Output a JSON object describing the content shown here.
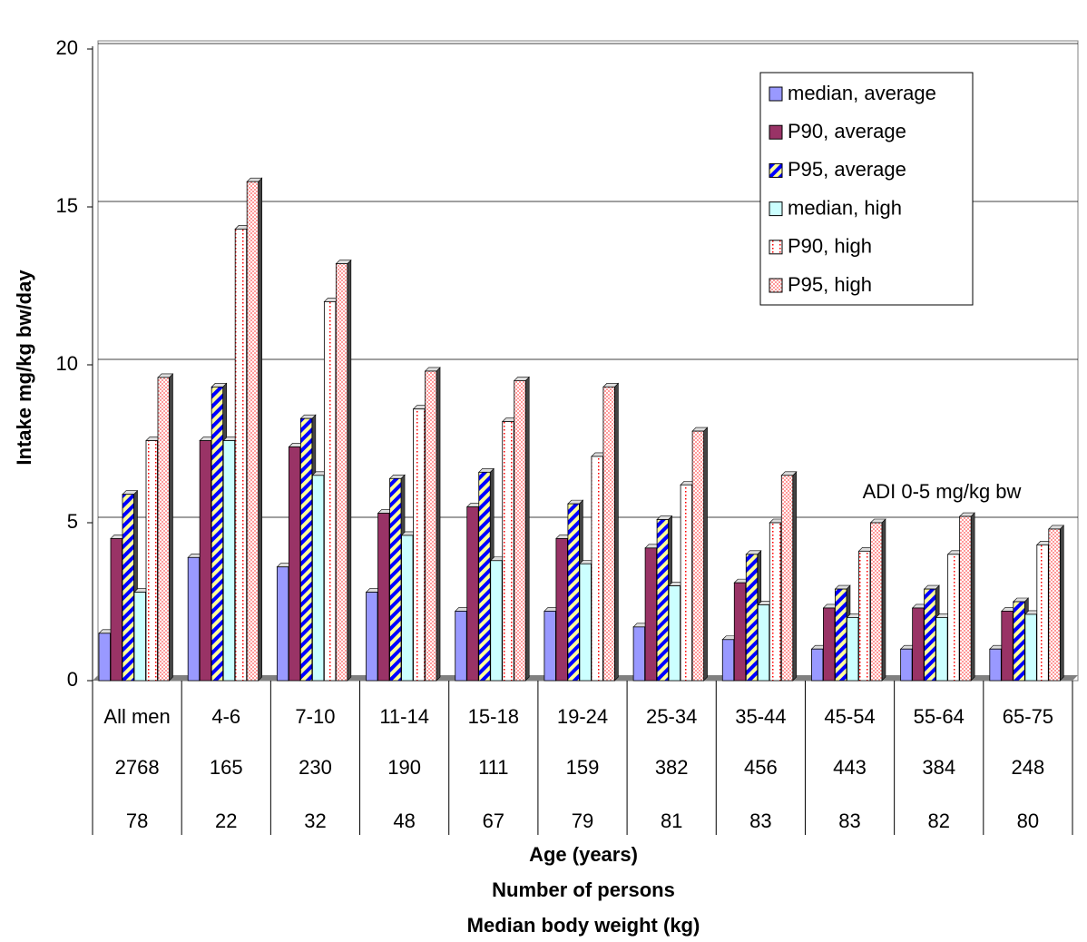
{
  "chart_data": {
    "type": "bar",
    "y_label": "Intake mg/kg bw/day",
    "x_label_lines": [
      "Age (years)",
      "Number of persons",
      "Median body weight (kg)"
    ],
    "annotation": "ADI 0-5 mg/kg bw",
    "categories": [
      "All men",
      "4-6",
      "7-10",
      "11-14",
      "15-18",
      "19-24",
      "25-34",
      "35-44",
      "45-54",
      "55-64",
      "65-75"
    ],
    "persons": [
      2768,
      165,
      230,
      190,
      111,
      159,
      382,
      456,
      443,
      384,
      248
    ],
    "body_weight": [
      78,
      22,
      32,
      48,
      67,
      79,
      81,
      83,
      83,
      82,
      80
    ],
    "ylim": [
      0,
      20
    ],
    "yticks": [
      0,
      5,
      10,
      15,
      20
    ],
    "grid": true,
    "legend": "top-right",
    "series": [
      {
        "name": "median, average",
        "color": "#9999ff",
        "pattern": "solid",
        "values": [
          1.5,
          3.9,
          3.6,
          2.8,
          2.2,
          2.2,
          1.7,
          1.3,
          1.0,
          1.0,
          1.0
        ]
      },
      {
        "name": "P90, average",
        "color": "#993366",
        "pattern": "solid",
        "values": [
          4.5,
          7.6,
          7.4,
          5.3,
          5.5,
          4.5,
          4.2,
          3.1,
          2.3,
          2.3,
          2.2
        ]
      },
      {
        "name": "P95, average",
        "color": "#0000ff",
        "pattern": "stripes",
        "values": [
          5.9,
          9.3,
          8.3,
          6.4,
          6.6,
          5.6,
          5.1,
          4.0,
          2.9,
          2.9,
          2.5
        ]
      },
      {
        "name": "median, high",
        "color": "#ccffff",
        "pattern": "solid",
        "values": [
          2.8,
          7.6,
          6.5,
          4.6,
          3.8,
          3.7,
          3.0,
          2.4,
          2.0,
          2.0,
          2.1
        ]
      },
      {
        "name": "P90, high",
        "color": "#ff0000",
        "pattern": "dots",
        "values": [
          7.6,
          14.3,
          12.0,
          8.6,
          8.2,
          7.1,
          6.2,
          5.0,
          4.1,
          4.0,
          4.3
        ]
      },
      {
        "name": "P95, high",
        "color": "#ff9999",
        "pattern": "checks",
        "values": [
          9.6,
          15.8,
          13.2,
          9.8,
          9.5,
          9.3,
          7.9,
          6.5,
          5.0,
          5.2,
          4.8
        ]
      }
    ]
  }
}
